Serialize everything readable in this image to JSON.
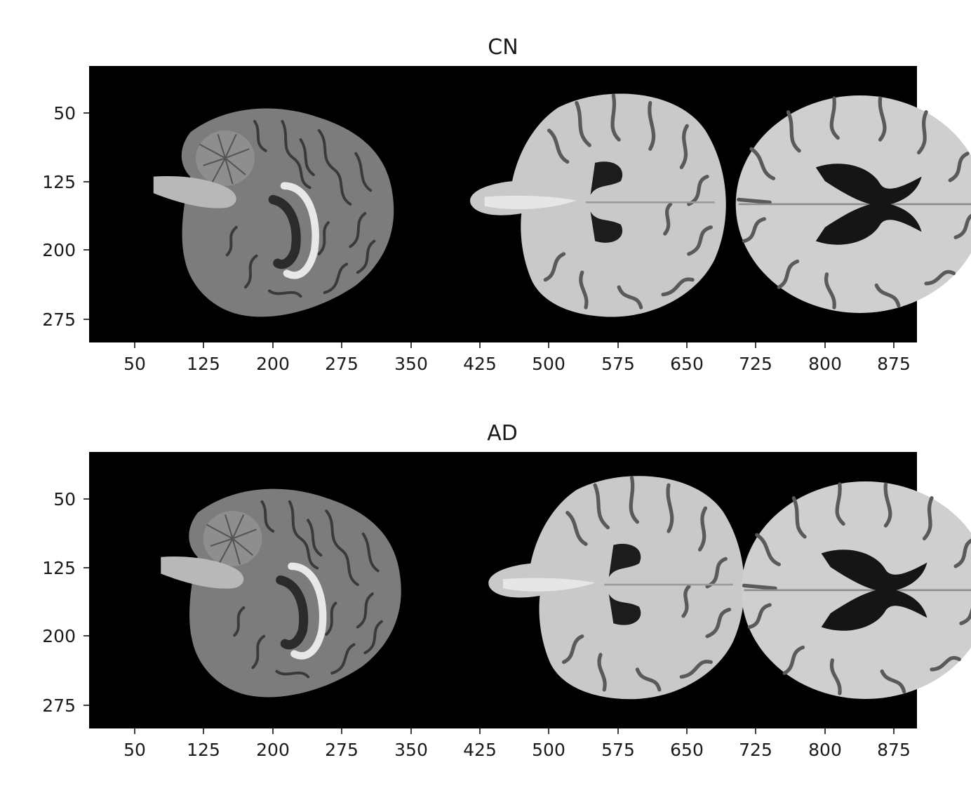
{
  "figure": {
    "background": "#ffffff",
    "panel_background": "#000000"
  },
  "panels": [
    {
      "id": "cn",
      "title": "CN",
      "x_ticks": [
        50,
        125,
        200,
        275,
        350,
        425,
        500,
        575,
        650,
        725,
        800,
        875
      ],
      "y_ticks": [
        50,
        125,
        200,
        275
      ],
      "xlim": [
        0,
        900
      ],
      "ylim": [
        300,
        0
      ],
      "slices": [
        "sagittal",
        "coronal",
        "axial"
      ]
    },
    {
      "id": "ad",
      "title": "AD",
      "x_ticks": [
        50,
        125,
        200,
        275,
        350,
        425,
        500,
        575,
        650,
        725,
        800,
        875
      ],
      "y_ticks": [
        50,
        125,
        200,
        275
      ],
      "xlim": [
        0,
        900
      ],
      "ylim": [
        300,
        0
      ],
      "slices": [
        "sagittal",
        "coronal",
        "axial"
      ]
    }
  ]
}
